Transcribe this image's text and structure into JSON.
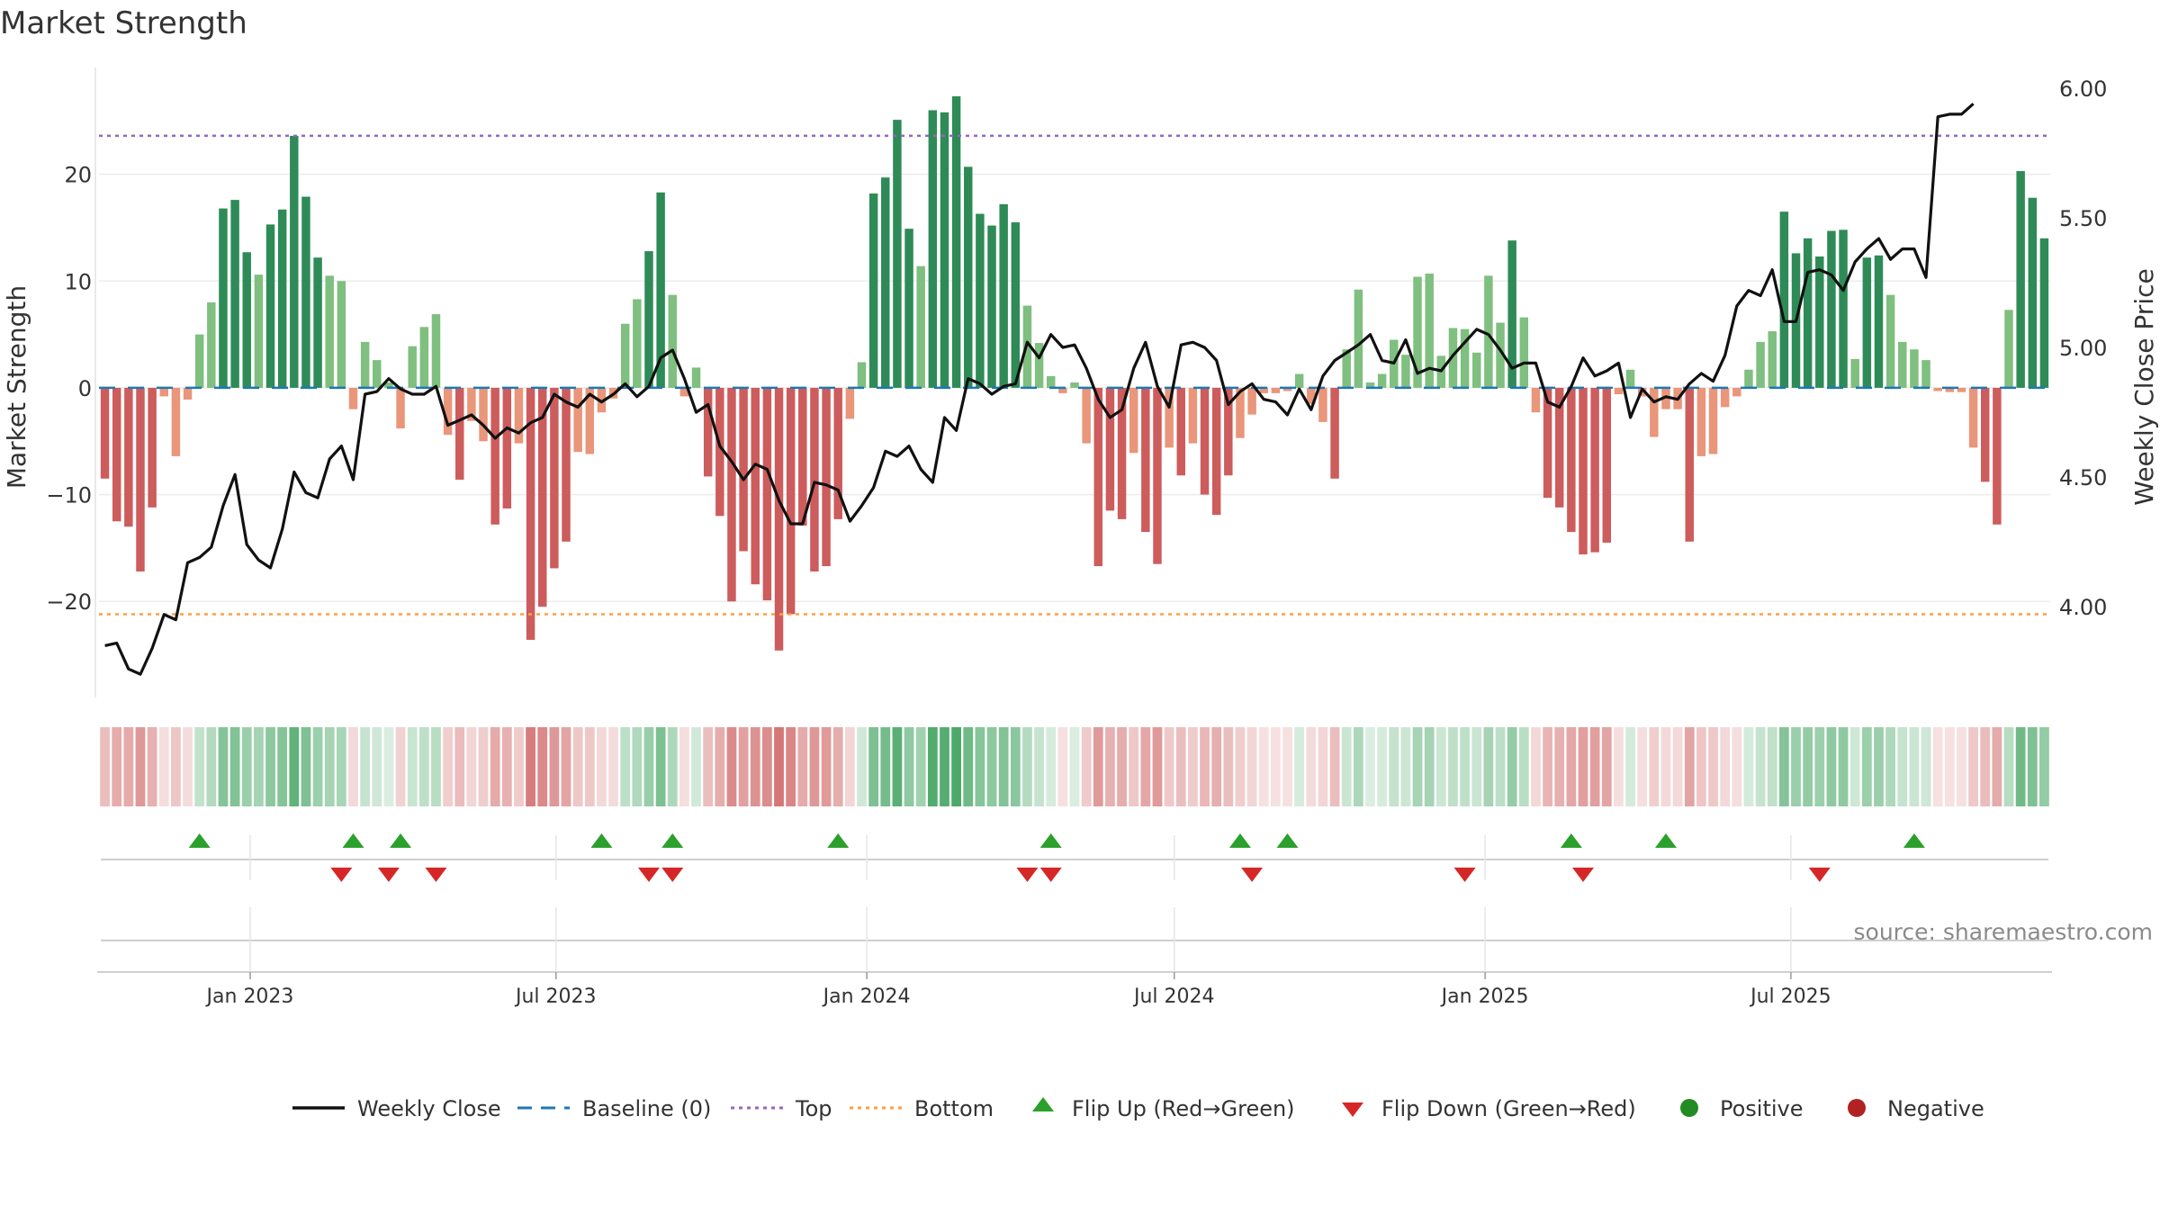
{
  "chart_data": {
    "type": "bar",
    "title": "Market Strength",
    "ylabel_left": "Market Strength",
    "ylabel_right": "Weekly Close Price",
    "source": "source: sharemaestro.com",
    "ylim_left": [
      -29,
      30
    ],
    "ylim_right": [
      3.65,
      6.08
    ],
    "yticks_left": [
      20,
      10,
      0,
      -10,
      -20
    ],
    "ytick_labels_left": [
      "20",
      "10",
      "0",
      "−10",
      "−20"
    ],
    "yticks_right": [
      6.0,
      5.5,
      5.0,
      4.5,
      4.0
    ],
    "ytick_labels_right": [
      "6.00",
      "5.50",
      "5.00",
      "4.50",
      "4.00"
    ],
    "top_line": 23.6,
    "bottom_line": -21.2,
    "start_date": "2022-10-07",
    "x_ticks": [
      {
        "date": "2023-01-01",
        "label": "Jan 2023"
      },
      {
        "date": "2023-07-01",
        "label": "Jul 2023"
      },
      {
        "date": "2024-01-01",
        "label": "Jan 2024"
      },
      {
        "date": "2024-07-01",
        "label": "Jul 2024"
      },
      {
        "date": "2025-01-01",
        "label": "Jan 2025"
      },
      {
        "date": "2025-07-01",
        "label": "Jul 2025"
      }
    ],
    "strength": [
      -8.5,
      -12.5,
      -13,
      -17.2,
      -11.2,
      -0.8,
      -6.4,
      -1.1,
      5,
      8,
      16.8,
      17.6,
      12.7,
      10.6,
      15.3,
      16.7,
      23.6,
      17.9,
      12.2,
      10.5,
      10,
      -2,
      4.3,
      2.6,
      0.5,
      -3.8,
      3.9,
      5.7,
      6.9,
      -4.4,
      -8.6,
      -3.1,
      -5,
      -12.8,
      -11.3,
      -5.2,
      -23.6,
      -20.5,
      -16.9,
      -14.4,
      -6,
      -6.2,
      -2.3,
      -1,
      6,
      8.3,
      12.8,
      18.3,
      8.7,
      -0.8,
      1.9,
      -8.3,
      -12,
      -20,
      -15.3,
      -18.4,
      -19.9,
      -24.6,
      -21.2,
      -12.9,
      -17.2,
      -16.7,
      -12.3,
      -2.9,
      2.4,
      18.2,
      19.7,
      25.1,
      14.9,
      11.4,
      26,
      25.8,
      27.3,
      20.7,
      16.3,
      15.2,
      17.2,
      15.5,
      7.7,
      4.2,
      1.1,
      -0.5,
      0.5,
      -5.2,
      -16.7,
      -11.5,
      -12.3,
      -6.1,
      -13.5,
      -16.5,
      -5.6,
      -8.2,
      -5.2,
      -10,
      -11.9,
      -8.2,
      -4.7,
      -2.5,
      -0.5,
      -0.5,
      -0.3,
      1.3,
      -1.5,
      -3.2,
      -8.5,
      3.6,
      9.2,
      0.5,
      1.3,
      4.5,
      3.1,
      10.4,
      10.7,
      3,
      5.6,
      5.5,
      3.3,
      10.5,
      6.1,
      13.8,
      6.6,
      -2.3,
      -10.3,
      -11.2,
      -13.5,
      -15.6,
      -15.4,
      -14.5,
      -0.6,
      1.7,
      -0.8,
      -4.6,
      -2,
      -2,
      -14.4,
      -6.4,
      -6.2,
      -1.8,
      -0.8,
      1.7,
      4.3,
      5.3,
      16.5,
      12.6,
      14,
      12.3,
      14.7,
      14.8,
      2.7,
      12.2,
      12.4,
      8.7,
      4.3,
      3.6,
      2.6,
      -0.3,
      -0.4,
      -0.4,
      -5.6,
      -8.8,
      -12.8,
      7.3,
      20.3,
      17.8,
      14
    ],
    "weekly_close": [
      3.85,
      3.86,
      3.76,
      3.74,
      3.84,
      3.97,
      3.95,
      4.17,
      4.19,
      4.23,
      4.39,
      4.51,
      4.24,
      4.18,
      4.15,
      4.3,
      4.52,
      4.44,
      4.42,
      4.57,
      4.62,
      4.49,
      4.82,
      4.83,
      4.88,
      4.84,
      4.82,
      4.82,
      4.85,
      4.7,
      4.72,
      4.74,
      4.7,
      4.65,
      4.69,
      4.67,
      4.71,
      4.73,
      4.82,
      4.79,
      4.77,
      4.82,
      4.79,
      4.82,
      4.86,
      4.81,
      4.85,
      4.96,
      4.99,
      4.88,
      4.75,
      4.78,
      4.62,
      4.56,
      4.49,
      4.55,
      4.53,
      4.41,
      4.32,
      4.32,
      4.48,
      4.47,
      4.45,
      4.33,
      4.39,
      4.46,
      4.6,
      4.58,
      4.62,
      4.53,
      4.48,
      4.73,
      4.68,
      4.88,
      4.86,
      4.82,
      4.85,
      4.86,
      5.02,
      4.96,
      5.05,
      5,
      5.01,
      4.92,
      4.8,
      4.73,
      4.76,
      4.92,
      5.02,
      4.85,
      4.77,
      5.01,
      5.02,
      5,
      4.95,
      4.78,
      4.83,
      4.86,
      4.8,
      4.79,
      4.74,
      4.84,
      4.76,
      4.89,
      4.95,
      4.98,
      5.01,
      5.05,
      4.95,
      4.94,
      5.03,
      4.9,
      4.92,
      4.91,
      4.97,
      5.02,
      5.07,
      5.05,
      4.99,
      4.92,
      4.94,
      4.94,
      4.79,
      4.77,
      4.85,
      4.96,
      4.89,
      4.91,
      4.94,
      4.73,
      4.84,
      4.79,
      4.81,
      4.8,
      4.86,
      4.9,
      4.87,
      4.97,
      5.16,
      5.22,
      5.2,
      5.3,
      5.1,
      5.1,
      5.29,
      5.3,
      5.28,
      5.22,
      5.33,
      5.38,
      5.42,
      5.34,
      5.38,
      5.38,
      5.27,
      5.89,
      5.9,
      5.9,
      5.94
    ],
    "flip_up_dates": [
      "2022-12-02",
      "2023-03-03",
      "2023-03-31",
      "2023-07-28",
      "2023-09-08",
      "2023-12-15",
      "2024-04-19",
      "2024-08-09",
      "2024-09-06",
      "2025-02-21",
      "2025-04-18",
      "2025-09-12"
    ],
    "flip_down_dates": [
      "2023-02-24",
      "2023-03-24",
      "2023-04-21",
      "2023-08-25",
      "2023-09-08",
      "2024-04-05",
      "2024-04-19",
      "2024-08-16",
      "2024-12-20",
      "2025-02-28",
      "2025-07-18"
    ],
    "legend": [
      {
        "key": "weekly_close",
        "label": "Weekly Close"
      },
      {
        "key": "baseline",
        "label": "Baseline (0)"
      },
      {
        "key": "top",
        "label": "Top"
      },
      {
        "key": "bottom",
        "label": "Bottom"
      },
      {
        "key": "flip_up",
        "label": "Flip Up (Red→Green)"
      },
      {
        "key": "flip_down",
        "label": "Flip Down (Green→Red)"
      },
      {
        "key": "positive",
        "label": "Positive"
      },
      {
        "key": "negative",
        "label": "Negative"
      }
    ],
    "colors": {
      "pos_strong": "#2e8b57",
      "pos_weak": "#7fbf7f",
      "neg_strong": "#cd5c5c",
      "neg_weak": "#e9967a",
      "line": "#111111",
      "baseline": "#1f77b4",
      "top": "#9467bd",
      "bottom": "#ff9f40",
      "flip_up": "#2ca02c",
      "flip_down": "#d62728",
      "positive": "#228b22",
      "negative": "#b22222"
    }
  }
}
